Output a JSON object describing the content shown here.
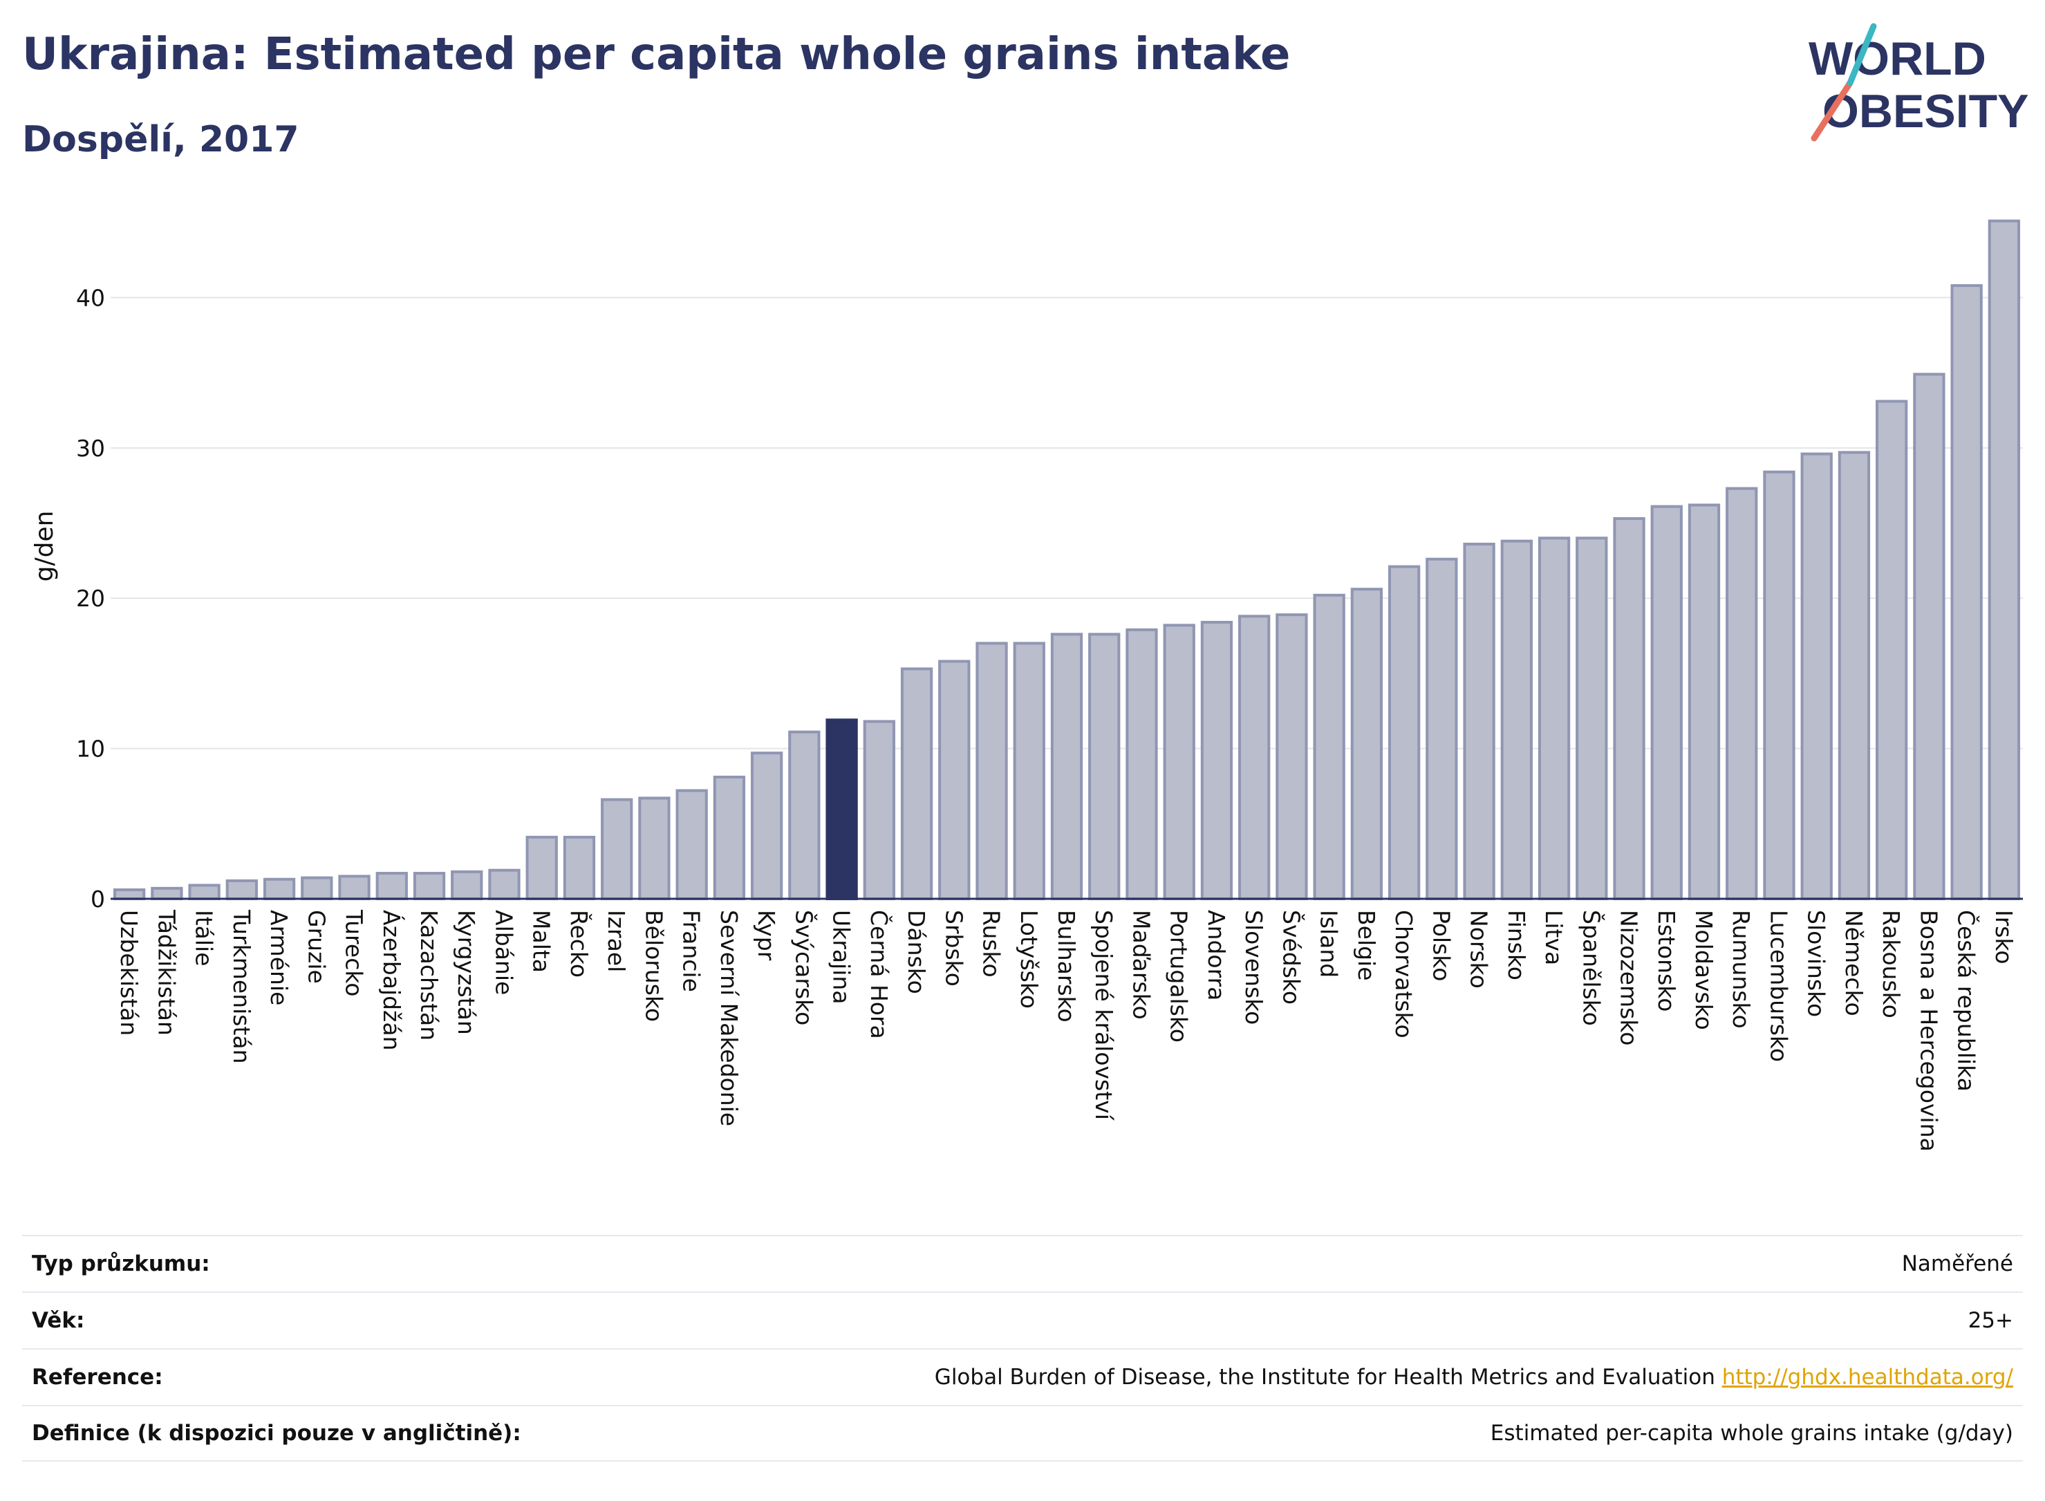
{
  "header": {
    "title": "Ukrajina: Estimated per capita whole grains intake",
    "subtitle": "Dospělí, 2017"
  },
  "logo": {
    "line1": "WORLD",
    "line2": "OBESITY"
  },
  "colors": {
    "bar": "#b9bdcc",
    "bar_border": "#9096b2",
    "highlight": "#2b3462",
    "text": "#2b3462"
  },
  "chart_data": {
    "type": "bar",
    "ylabel": "g/den",
    "ylim": [
      0,
      46
    ],
    "yticks": [
      0,
      10,
      20,
      30,
      40
    ],
    "highlight": "Ukrajina",
    "categories": [
      "Uzbekistán",
      "Tádžikistán",
      "Itálie",
      "Turkmenistán",
      "Arménie",
      "Gruzie",
      "Turecko",
      "Ázerbajdžán",
      "Kazachstán",
      "Kyrgyzstán",
      "Albánie",
      "Malta",
      "Řecko",
      "Izrael",
      "Bělorusko",
      "Francie",
      "Severní Makedonie",
      "Kypr",
      "Švýcarsko",
      "Ukrajina",
      "Černá Hora",
      "Dánsko",
      "Srbsko",
      "Rusko",
      "Lotyšsko",
      "Bulharsko",
      "Spojené království",
      "Maďarsko",
      "Portugalsko",
      "Andorra",
      "Slovensko",
      "Švédsko",
      "Island",
      "Belgie",
      "Chorvatsko",
      "Polsko",
      "Norsko",
      "Finsko",
      "Litva",
      "Španělsko",
      "Nizozemsko",
      "Estonsko",
      "Moldavsko",
      "Rumunsko",
      "Lucembursko",
      "Slovinsko",
      "Německo",
      "Rakousko",
      "Bosna a Hercegovina",
      "Česká republika",
      "Irsko"
    ],
    "values": [
      0.6,
      0.7,
      0.9,
      1.2,
      1.3,
      1.4,
      1.5,
      1.7,
      1.7,
      1.8,
      1.9,
      4.1,
      4.1,
      6.6,
      6.7,
      7.2,
      8.1,
      9.7,
      11.1,
      11.9,
      11.8,
      15.3,
      15.8,
      17.0,
      17.0,
      17.6,
      17.6,
      17.9,
      18.2,
      18.4,
      18.8,
      18.9,
      20.2,
      20.6,
      22.1,
      22.6,
      23.6,
      23.8,
      24.0,
      24.0,
      25.3,
      26.1,
      26.2,
      27.3,
      28.4,
      29.6,
      29.7,
      33.1,
      34.9,
      40.8,
      45.1
    ]
  },
  "meta": [
    {
      "label": "Typ průzkumu:",
      "value": "Naměřené"
    },
    {
      "label": "Věk:",
      "value": "25+"
    },
    {
      "label": "Reference:",
      "value": "Global Burden of Disease, the Institute for Health Metrics and Evaluation",
      "link": "http://ghdx.healthdata.org/"
    },
    {
      "label": "Definice (k dispozici pouze v angličtině):",
      "value": "Estimated per-capita whole grains intake (g/day)"
    }
  ]
}
